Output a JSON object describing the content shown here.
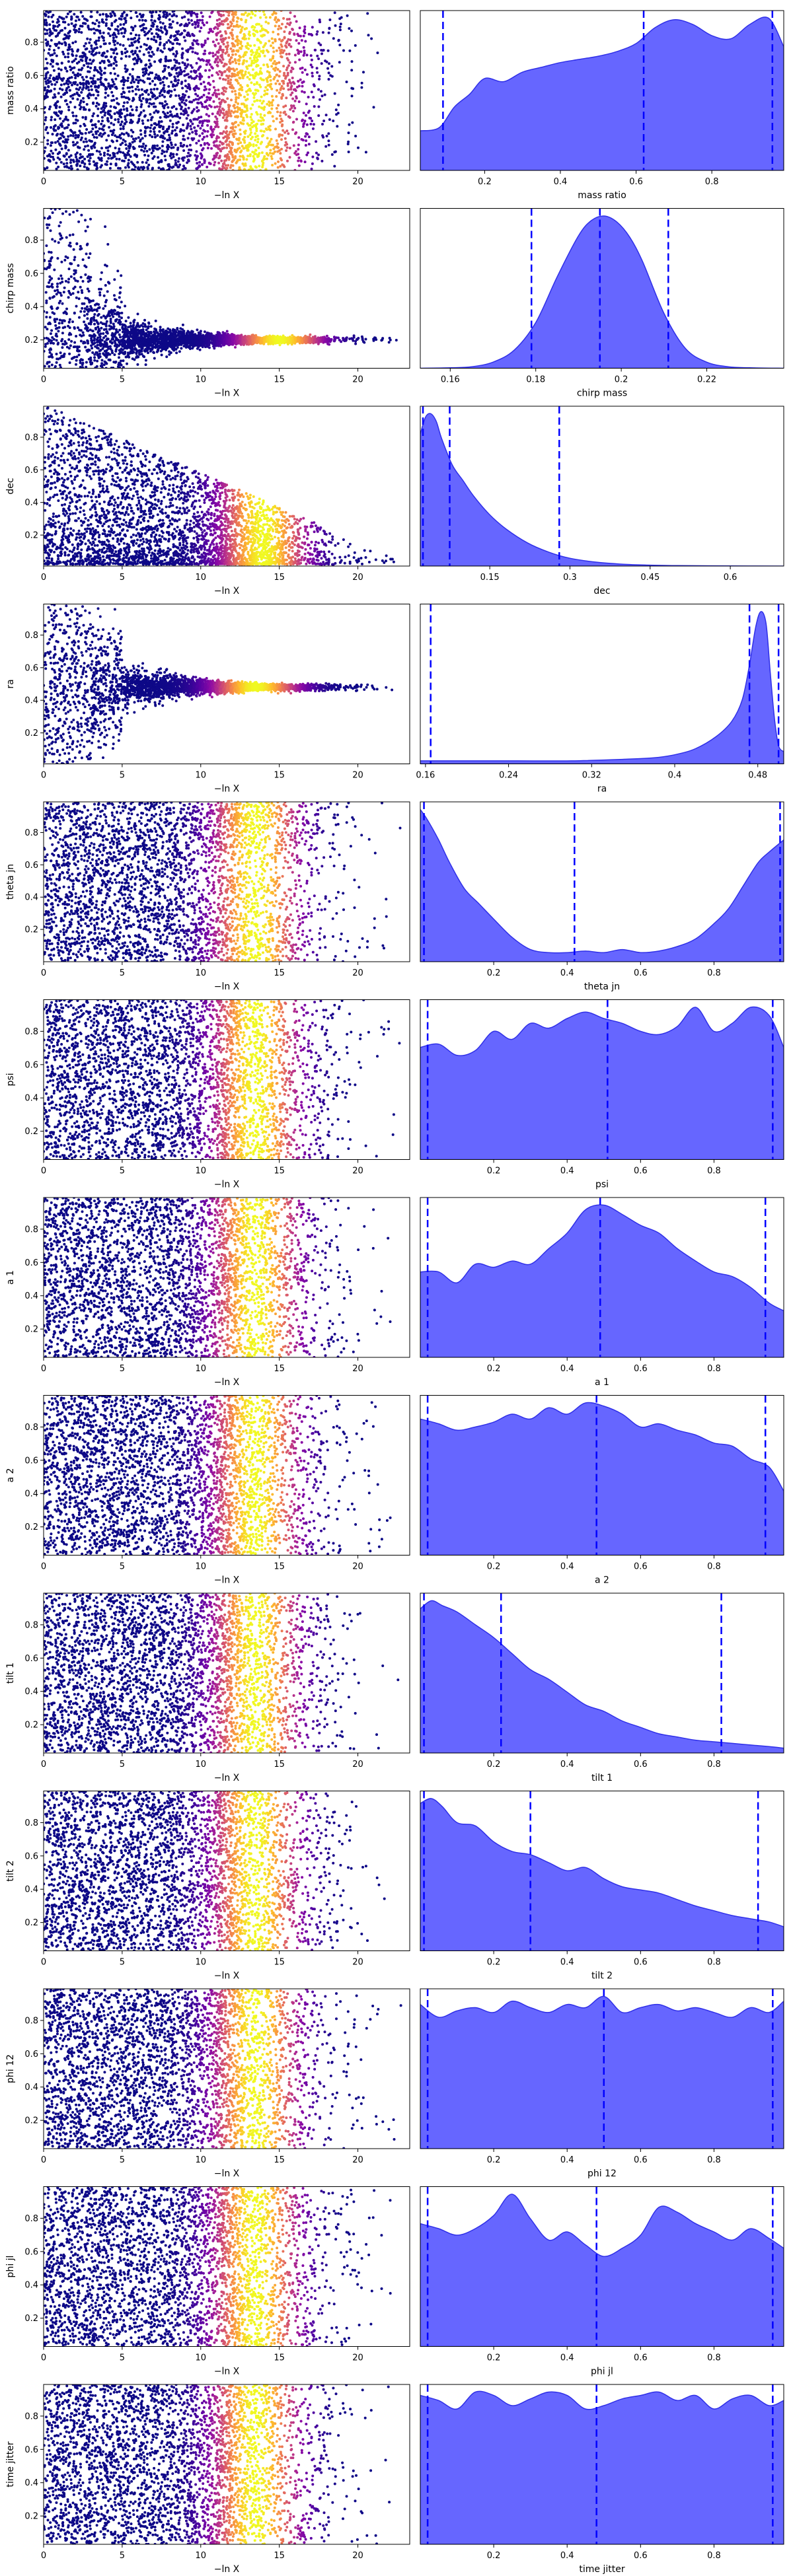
{
  "chart_data": [
    {
      "row": 0,
      "type": "scatter",
      "ylabel": "mass ratio",
      "xlabel": "−ln X",
      "xlim": [
        0,
        23.3
      ],
      "ylim": [
        0.03,
        0.99
      ],
      "xticks": [
        0,
        5,
        10,
        15,
        20
      ],
      "yticks": [
        0.2,
        0.4,
        0.6,
        0.8
      ],
      "profile": "uniform",
      "color_peak_x": 13.5
    },
    {
      "row": 0,
      "type": "area",
      "xlabel": "mass ratio",
      "xlim": [
        0.03,
        0.99
      ],
      "xticks": [
        0.2,
        0.4,
        0.6,
        0.8
      ],
      "quantiles": [
        0.09,
        0.62,
        0.96
      ],
      "x": [
        0.03,
        0.08,
        0.12,
        0.16,
        0.2,
        0.25,
        0.3,
        0.35,
        0.4,
        0.45,
        0.5,
        0.55,
        0.6,
        0.65,
        0.7,
        0.75,
        0.8,
        0.85,
        0.9,
        0.95,
        0.99
      ],
      "y": [
        0.25,
        0.27,
        0.4,
        0.48,
        0.58,
        0.56,
        0.62,
        0.65,
        0.68,
        0.7,
        0.72,
        0.75,
        0.8,
        0.9,
        0.95,
        0.92,
        0.85,
        0.83,
        0.92,
        0.96,
        0.78
      ]
    },
    {
      "row": 1,
      "type": "scatter",
      "ylabel": "chirp mass",
      "xlabel": "−ln X",
      "xlim": [
        0,
        23.3
      ],
      "ylim": [
        0.03,
        0.99
      ],
      "xticks": [
        0,
        5,
        10,
        15,
        20
      ],
      "yticks": [
        0.2,
        0.4,
        0.6,
        0.8
      ],
      "profile": "funnel",
      "center": 0.2,
      "color_peak_x": 15
    },
    {
      "row": 1,
      "type": "area",
      "xlabel": "chirp mass",
      "xlim": [
        0.153,
        0.238
      ],
      "xticks": [
        0.16,
        0.18,
        0.2,
        0.22
      ],
      "quantiles": [
        0.179,
        0.195,
        0.211
      ],
      "x": [
        0.153,
        0.16,
        0.165,
        0.17,
        0.175,
        0.18,
        0.185,
        0.19,
        0.193,
        0.196,
        0.199,
        0.202,
        0.205,
        0.21,
        0.215,
        0.22,
        0.225,
        0.23,
        0.238
      ],
      "y": [
        0,
        0.003,
        0.01,
        0.04,
        0.12,
        0.3,
        0.6,
        0.87,
        0.97,
        1.0,
        0.96,
        0.86,
        0.7,
        0.36,
        0.13,
        0.04,
        0.01,
        0.003,
        0
      ]
    },
    {
      "row": 2,
      "type": "scatter",
      "ylabel": "dec",
      "xlabel": "−ln X",
      "xlim": [
        0,
        23.3
      ],
      "ylim": [
        0.01,
        0.99
      ],
      "xticks": [
        0,
        5,
        10,
        15,
        20
      ],
      "yticks": [
        0.2,
        0.4,
        0.6,
        0.8
      ],
      "profile": "decay",
      "color_peak_x": 14
    },
    {
      "row": 2,
      "type": "area",
      "xlabel": "dec",
      "xlim": [
        0.02,
        0.7
      ],
      "xticks": [
        0.15,
        0.3,
        0.45,
        0.6
      ],
      "quantiles": [
        0.025,
        0.075,
        0.28
      ],
      "x": [
        0.02,
        0.03,
        0.04,
        0.05,
        0.06,
        0.08,
        0.1,
        0.12,
        0.15,
        0.18,
        0.22,
        0.26,
        0.3,
        0.35,
        0.4,
        0.45,
        0.5,
        0.6,
        0.7
      ],
      "y": [
        0.85,
        0.96,
        0.98,
        0.93,
        0.82,
        0.65,
        0.55,
        0.45,
        0.33,
        0.24,
        0.15,
        0.09,
        0.05,
        0.025,
        0.012,
        0.006,
        0.003,
        0.001,
        0
      ]
    },
    {
      "row": 3,
      "type": "scatter",
      "ylabel": "ra",
      "xlabel": "−ln X",
      "xlim": [
        0,
        23.3
      ],
      "ylim": [
        0.01,
        0.99
      ],
      "xticks": [
        0,
        5,
        10,
        15,
        20
      ],
      "yticks": [
        0.2,
        0.4,
        0.6,
        0.8
      ],
      "profile": "funnel",
      "center": 0.48,
      "color_peak_x": 13.5
    },
    {
      "row": 3,
      "type": "area",
      "xlabel": "ra",
      "xlim": [
        0.155,
        0.505
      ],
      "xticks": [
        0.16,
        0.24,
        0.32,
        0.4,
        0.48
      ],
      "quantiles": [
        0.165,
        0.472,
        0.5
      ],
      "x": [
        0.155,
        0.2,
        0.25,
        0.3,
        0.35,
        0.38,
        0.4,
        0.42,
        0.44,
        0.455,
        0.465,
        0.472,
        0.478,
        0.483,
        0.488,
        0.492,
        0.496,
        0.5,
        0.505
      ],
      "y": [
        0.02,
        0.02,
        0.02,
        0.02,
        0.03,
        0.04,
        0.06,
        0.1,
        0.18,
        0.28,
        0.42,
        0.65,
        0.9,
        1.0,
        0.92,
        0.6,
        0.3,
        0.12,
        0.08
      ]
    },
    {
      "row": 4,
      "type": "scatter",
      "ylabel": "theta jn",
      "xlabel": "−ln X",
      "xlim": [
        0,
        23.3
      ],
      "ylim": [
        0.0,
        0.99
      ],
      "xticks": [
        0,
        5,
        10,
        15,
        20
      ],
      "yticks": [
        0.2,
        0.4,
        0.6,
        0.8
      ],
      "profile": "edges",
      "color_peak_x": 13.5
    },
    {
      "row": 4,
      "type": "area",
      "xlabel": "theta jn",
      "xlim": [
        0.0,
        0.99
      ],
      "xticks": [
        0.2,
        0.4,
        0.6,
        0.8
      ],
      "quantiles": [
        0.01,
        0.42,
        0.98
      ],
      "x": [
        0.0,
        0.02,
        0.05,
        0.08,
        0.12,
        0.16,
        0.2,
        0.25,
        0.3,
        0.35,
        0.4,
        0.45,
        0.5,
        0.55,
        0.6,
        0.65,
        0.7,
        0.75,
        0.8,
        0.84,
        0.88,
        0.92,
        0.95,
        0.99
      ],
      "y": [
        1.0,
        0.93,
        0.8,
        0.65,
        0.48,
        0.38,
        0.28,
        0.16,
        0.08,
        0.06,
        0.06,
        0.07,
        0.06,
        0.08,
        0.06,
        0.07,
        0.1,
        0.15,
        0.25,
        0.35,
        0.5,
        0.65,
        0.72,
        0.8
      ]
    },
    {
      "row": 5,
      "type": "scatter",
      "ylabel": "psi",
      "xlabel": "−ln X",
      "xlim": [
        0,
        23.3
      ],
      "ylim": [
        0.03,
        0.99
      ],
      "xticks": [
        0,
        5,
        10,
        15,
        20
      ],
      "yticks": [
        0.2,
        0.4,
        0.6,
        0.8
      ],
      "profile": "uniform",
      "color_peak_x": 13.5
    },
    {
      "row": 5,
      "type": "area",
      "xlabel": "psi",
      "xlim": [
        0.0,
        0.99
      ],
      "xticks": [
        0.2,
        0.4,
        0.6,
        0.8
      ],
      "quantiles": [
        0.02,
        0.51,
        0.96
      ],
      "x": [
        0.0,
        0.05,
        0.1,
        0.15,
        0.2,
        0.25,
        0.3,
        0.35,
        0.4,
        0.45,
        0.5,
        0.55,
        0.6,
        0.65,
        0.7,
        0.75,
        0.8,
        0.85,
        0.9,
        0.95,
        0.99
      ],
      "y": [
        0.7,
        0.72,
        0.65,
        0.68,
        0.8,
        0.75,
        0.85,
        0.82,
        0.88,
        0.92,
        0.88,
        0.85,
        0.8,
        0.78,
        0.83,
        0.95,
        0.8,
        0.85,
        0.95,
        0.9,
        0.7
      ]
    },
    {
      "row": 6,
      "type": "scatter",
      "ylabel": "a 1",
      "xlabel": "−ln X",
      "xlim": [
        0,
        23.3
      ],
      "ylim": [
        0.03,
        0.99
      ],
      "xticks": [
        0,
        5,
        10,
        15,
        20
      ],
      "yticks": [
        0.2,
        0.4,
        0.6,
        0.8
      ],
      "profile": "uniform",
      "color_peak_x": 13.5
    },
    {
      "row": 6,
      "type": "area",
      "xlabel": "a 1",
      "xlim": [
        0.0,
        0.99
      ],
      "xticks": [
        0.2,
        0.4,
        0.6,
        0.8
      ],
      "quantiles": [
        0.02,
        0.49,
        0.94
      ],
      "x": [
        0.0,
        0.05,
        0.1,
        0.15,
        0.2,
        0.25,
        0.3,
        0.35,
        0.4,
        0.45,
        0.5,
        0.55,
        0.6,
        0.65,
        0.7,
        0.75,
        0.8,
        0.85,
        0.9,
        0.95,
        0.99
      ],
      "y": [
        0.55,
        0.55,
        0.48,
        0.6,
        0.58,
        0.62,
        0.6,
        0.7,
        0.8,
        0.95,
        0.98,
        0.92,
        0.85,
        0.8,
        0.7,
        0.62,
        0.55,
        0.52,
        0.45,
        0.35,
        0.3
      ]
    },
    {
      "row": 7,
      "type": "scatter",
      "ylabel": "a 2",
      "xlabel": "−ln X",
      "xlim": [
        0,
        23.3
      ],
      "ylim": [
        0.03,
        0.99
      ],
      "xticks": [
        0,
        5,
        10,
        15,
        20
      ],
      "yticks": [
        0.2,
        0.4,
        0.6,
        0.8
      ],
      "profile": "uniform",
      "color_peak_x": 13.5
    },
    {
      "row": 7,
      "type": "area",
      "xlabel": "a 2",
      "xlim": [
        0.0,
        0.99
      ],
      "xticks": [
        0.2,
        0.4,
        0.6,
        0.8
      ],
      "quantiles": [
        0.02,
        0.48,
        0.94
      ],
      "x": [
        0.0,
        0.05,
        0.1,
        0.15,
        0.2,
        0.25,
        0.3,
        0.35,
        0.4,
        0.45,
        0.5,
        0.55,
        0.6,
        0.65,
        0.7,
        0.75,
        0.8,
        0.85,
        0.9,
        0.95,
        0.99
      ],
      "y": [
        0.85,
        0.82,
        0.78,
        0.8,
        0.83,
        0.88,
        0.85,
        0.92,
        0.88,
        0.95,
        0.93,
        0.88,
        0.8,
        0.82,
        0.78,
        0.75,
        0.7,
        0.68,
        0.6,
        0.55,
        0.4
      ]
    },
    {
      "row": 8,
      "type": "scatter",
      "ylabel": "tilt 1",
      "xlabel": "−ln X",
      "xlim": [
        0,
        23.3
      ],
      "ylim": [
        0.03,
        0.99
      ],
      "xticks": [
        0,
        5,
        10,
        15,
        20
      ],
      "yticks": [
        0.2,
        0.4,
        0.6,
        0.8
      ],
      "profile": "uniform",
      "color_peak_x": 13.5
    },
    {
      "row": 8,
      "type": "area",
      "xlabel": "tilt 1",
      "xlim": [
        0.0,
        0.99
      ],
      "xticks": [
        0.2,
        0.4,
        0.6,
        0.8
      ],
      "quantiles": [
        0.01,
        0.22,
        0.82
      ],
      "x": [
        0.0,
        0.03,
        0.06,
        0.1,
        0.15,
        0.2,
        0.25,
        0.3,
        0.35,
        0.4,
        0.45,
        0.5,
        0.55,
        0.6,
        0.65,
        0.7,
        0.75,
        0.8,
        0.85,
        0.9,
        0.95,
        0.99
      ],
      "y": [
        0.9,
        0.95,
        0.92,
        0.88,
        0.8,
        0.72,
        0.62,
        0.52,
        0.46,
        0.38,
        0.3,
        0.26,
        0.2,
        0.16,
        0.12,
        0.1,
        0.08,
        0.07,
        0.06,
        0.05,
        0.04,
        0.03
      ]
    },
    {
      "row": 9,
      "type": "scatter",
      "ylabel": "tilt 2",
      "xlabel": "−ln X",
      "xlim": [
        0,
        23.3
      ],
      "ylim": [
        0.03,
        0.99
      ],
      "xticks": [
        0,
        5,
        10,
        15,
        20
      ],
      "yticks": [
        0.2,
        0.4,
        0.6,
        0.8
      ],
      "profile": "uniform",
      "color_peak_x": 13.5
    },
    {
      "row": 9,
      "type": "area",
      "xlabel": "tilt 2",
      "xlim": [
        0.0,
        0.99
      ],
      "xticks": [
        0.2,
        0.4,
        0.6,
        0.8
      ],
      "quantiles": [
        0.01,
        0.3,
        0.92
      ],
      "x": [
        0.0,
        0.03,
        0.06,
        0.1,
        0.15,
        0.2,
        0.25,
        0.3,
        0.35,
        0.4,
        0.45,
        0.5,
        0.55,
        0.6,
        0.65,
        0.7,
        0.75,
        0.8,
        0.85,
        0.9,
        0.95,
        0.99
      ],
      "y": [
        0.92,
        0.95,
        0.9,
        0.8,
        0.78,
        0.68,
        0.62,
        0.6,
        0.55,
        0.5,
        0.52,
        0.45,
        0.4,
        0.38,
        0.36,
        0.32,
        0.28,
        0.25,
        0.22,
        0.2,
        0.18,
        0.15
      ]
    },
    {
      "row": 10,
      "type": "scatter",
      "ylabel": "phi 12",
      "xlabel": "−ln X",
      "xlim": [
        0,
        23.3
      ],
      "ylim": [
        0.03,
        0.99
      ],
      "xticks": [
        0,
        5,
        10,
        15,
        20
      ],
      "yticks": [
        0.2,
        0.4,
        0.6,
        0.8
      ],
      "profile": "uniform",
      "color_peak_x": 13.5
    },
    {
      "row": 10,
      "type": "area",
      "xlabel": "phi 12",
      "xlim": [
        0.0,
        0.99
      ],
      "xticks": [
        0.2,
        0.4,
        0.6,
        0.8
      ],
      "quantiles": [
        0.02,
        0.5,
        0.96
      ],
      "x": [
        0.0,
        0.05,
        0.1,
        0.15,
        0.2,
        0.25,
        0.3,
        0.35,
        0.4,
        0.45,
        0.5,
        0.55,
        0.6,
        0.65,
        0.7,
        0.75,
        0.8,
        0.85,
        0.9,
        0.95,
        0.99
      ],
      "y": [
        0.9,
        0.82,
        0.86,
        0.88,
        0.85,
        0.92,
        0.88,
        0.85,
        0.9,
        0.88,
        0.95,
        0.85,
        0.88,
        0.9,
        0.86,
        0.88,
        0.85,
        0.82,
        0.88,
        0.85,
        0.92
      ]
    },
    {
      "row": 11,
      "type": "scatter",
      "ylabel": "phi jl",
      "xlabel": "−ln X",
      "xlim": [
        0,
        23.3
      ],
      "ylim": [
        0.03,
        0.99
      ],
      "xticks": [
        0,
        5,
        10,
        15,
        20
      ],
      "yticks": [
        0.2,
        0.4,
        0.6,
        0.8
      ],
      "profile": "uniform",
      "color_peak_x": 13.5
    },
    {
      "row": 11,
      "type": "area",
      "xlabel": "phi jl",
      "xlim": [
        0.0,
        0.99
      ],
      "xticks": [
        0.2,
        0.4,
        0.6,
        0.8
      ],
      "quantiles": [
        0.02,
        0.48,
        0.96
      ],
      "x": [
        0.0,
        0.05,
        0.1,
        0.15,
        0.2,
        0.25,
        0.3,
        0.35,
        0.4,
        0.45,
        0.5,
        0.55,
        0.6,
        0.65,
        0.7,
        0.75,
        0.8,
        0.85,
        0.9,
        0.95,
        0.99
      ],
      "y": [
        0.75,
        0.72,
        0.68,
        0.72,
        0.8,
        0.93,
        0.78,
        0.65,
        0.7,
        0.62,
        0.55,
        0.6,
        0.68,
        0.85,
        0.82,
        0.75,
        0.7,
        0.65,
        0.72,
        0.66,
        0.6
      ]
    },
    {
      "row": 12,
      "type": "scatter",
      "ylabel": "time jitter",
      "xlabel": "−ln X",
      "xlim": [
        0,
        23.3
      ],
      "ylim": [
        0.03,
        0.99
      ],
      "xticks": [
        0,
        5,
        10,
        15,
        20
      ],
      "yticks": [
        0.2,
        0.4,
        0.6,
        0.8
      ],
      "profile": "uniform",
      "color_peak_x": 13.5
    },
    {
      "row": 12,
      "type": "area",
      "xlabel": "time jitter",
      "xlim": [
        0.0,
        0.99
      ],
      "xticks": [
        0.2,
        0.4,
        0.6,
        0.8
      ],
      "quantiles": [
        0.02,
        0.48,
        0.96
      ],
      "x": [
        0.0,
        0.05,
        0.1,
        0.15,
        0.2,
        0.25,
        0.3,
        0.35,
        0.4,
        0.45,
        0.5,
        0.55,
        0.6,
        0.65,
        0.7,
        0.75,
        0.8,
        0.85,
        0.9,
        0.95,
        0.99
      ],
      "y": [
        0.88,
        0.85,
        0.8,
        0.9,
        0.88,
        0.82,
        0.86,
        0.9,
        0.88,
        0.8,
        0.82,
        0.86,
        0.88,
        0.9,
        0.85,
        0.88,
        0.8,
        0.86,
        0.88,
        0.82,
        0.85
      ]
    }
  ],
  "colors": {
    "kde_fill": "#6666ff",
    "kde_edge": "#2f2fe8",
    "quantile_line": "#0000ff",
    "scatter_cmap": "plasma"
  }
}
